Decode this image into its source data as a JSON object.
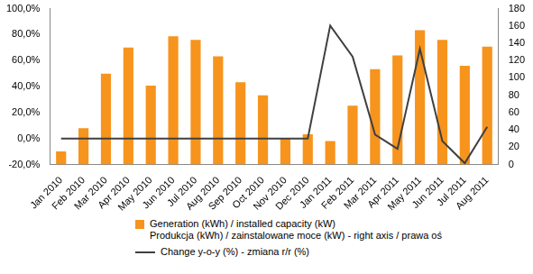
{
  "chart_data": {
    "type": "bar",
    "categories": [
      "Jan 2010",
      "Feb 2010",
      "Mar 2010",
      "Apr 2010",
      "May 2010",
      "Jun 2010",
      "Jul 2010",
      "Aug 2010",
      "Sep 2010",
      "Oct 2010",
      "Nov 2010",
      "Dec 2010",
      "Jan 2011",
      "Feb 2011",
      "Mar 2011",
      "Apr 2011",
      "May 2011",
      "Jun 2011",
      "Jul 2011",
      "Aug 2011"
    ],
    "series": [
      {
        "name": "Generation (kWh) / installed capacity (kW)\nProdukcja (kWh) / zainstalowane  moce (kW) - right axis / prawa oś",
        "type": "bar",
        "color": "#f7941d",
        "axis": "y2",
        "values": [
          15,
          42,
          105,
          135,
          91,
          148,
          144,
          125,
          95,
          80,
          30,
          35,
          27,
          68,
          110,
          126,
          155,
          144,
          114,
          136
        ]
      },
      {
        "name": "Change y-o-y (%) - zmiana r/r (%)",
        "type": "line",
        "color": "#404040",
        "marker": "none",
        "values": [
          0,
          0,
          0,
          0,
          0,
          0,
          0,
          0,
          0,
          0,
          0,
          0,
          87,
          63,
          3,
          -8,
          69,
          -2,
          -19,
          9
        ]
      }
    ],
    "ylim": [
      -20,
      100
    ],
    "yticks": [
      {
        "value": -20,
        "label": "-20,0%"
      },
      {
        "value": 0,
        "label": "0,0%"
      },
      {
        "value": 20,
        "label": "20,0%"
      },
      {
        "value": 40,
        "label": "40,0%"
      },
      {
        "value": 60,
        "label": "60,0%"
      },
      {
        "value": 80,
        "label": "80,0%"
      },
      {
        "value": 100,
        "label": "100,0%"
      }
    ],
    "y2lim": [
      0,
      180
    ],
    "y2ticks": [
      0,
      20,
      40,
      60,
      80,
      100,
      120,
      140,
      160,
      180
    ],
    "grid": false,
    "legend": "bottom"
  }
}
